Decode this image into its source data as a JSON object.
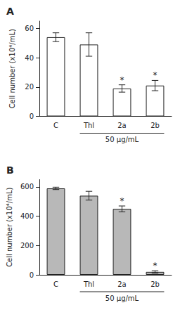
{
  "chart_data": [
    {
      "type": "bar",
      "title": "A",
      "categories": [
        "C",
        "Thl",
        "2a",
        "2b"
      ],
      "values": [
        54,
        49,
        19,
        21
      ],
      "errors": [
        3,
        8,
        2.5,
        3.5
      ],
      "color": "#ffffff",
      "ylabel": "Cell number (x10⁴/mL)",
      "ylim": [
        0,
        65
      ],
      "yticks": [
        0,
        20,
        40,
        60
      ],
      "grid": false,
      "annotations": [
        {
          "text": "*",
          "category": "2a"
        },
        {
          "text": "*",
          "category": "2b"
        },
        {
          "text": "50 μg/mL",
          "categories": [
            "Thl",
            "2a",
            "2b"
          ]
        }
      ]
    },
    {
      "type": "bar",
      "title": "B",
      "categories": [
        "C",
        "Thl",
        "2a",
        "2b"
      ],
      "values": [
        590,
        540,
        450,
        20
      ],
      "errors": [
        8,
        30,
        20,
        8
      ],
      "color": "#b8b8b8",
      "ylabel": "Cell number (x10⁴/mL)",
      "ylim": [
        0,
        650
      ],
      "yticks": [
        0,
        200,
        400,
        600
      ],
      "grid": false,
      "annotations": [
        {
          "text": "*",
          "category": "2a"
        },
        {
          "text": "*",
          "category": "2b"
        },
        {
          "text": "50 μg/mL",
          "categories": [
            "Thl",
            "2a",
            "2b"
          ]
        }
      ]
    }
  ]
}
